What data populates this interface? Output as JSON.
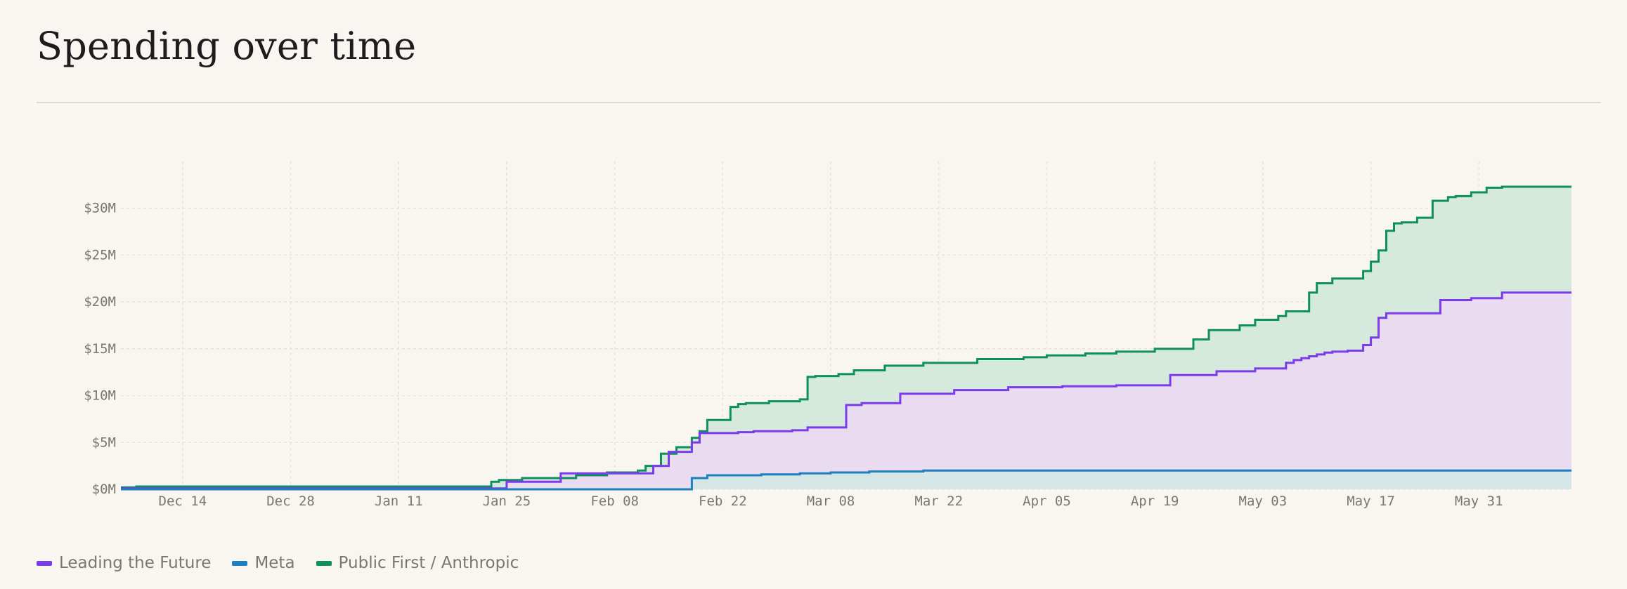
{
  "page": {
    "title": "Spending over time"
  },
  "chart_data": {
    "type": "area",
    "title": "Spending over time",
    "xlabel": "",
    "ylabel": "",
    "ylim": [
      0,
      35
    ],
    "xlim": [
      "2025-12-06",
      "2026-06-12"
    ],
    "grid": true,
    "stacked": true,
    "x_ticks": [
      "Dec 14",
      "Dec 28",
      "Jan 11",
      "Jan 25",
      "Feb 08",
      "Feb 22",
      "Mar 08",
      "Mar 22",
      "Apr 05",
      "Apr 19",
      "May 03",
      "May 17",
      "May 31"
    ],
    "x_tick_dates": [
      "2025-12-14",
      "2025-12-28",
      "2026-01-11",
      "2026-01-25",
      "2026-02-08",
      "2026-02-22",
      "2026-03-08",
      "2026-03-22",
      "2026-04-05",
      "2026-04-19",
      "2026-05-03",
      "2026-05-17",
      "2026-05-31"
    ],
    "y_ticks": [
      0,
      5,
      10,
      15,
      20,
      25,
      30
    ],
    "y_tick_labels": [
      "$0M",
      "$5M",
      "$10M",
      "$15M",
      "$20M",
      "$25M",
      "$30M"
    ],
    "legend_position": "bottom-left",
    "series": [
      {
        "name": "Leading the Future",
        "color": "#7c3aed",
        "fill": "#e9dcf1",
        "dates": [
          "2025-12-06",
          "2026-01-25",
          "2026-02-01",
          "2026-02-13",
          "2026-02-15",
          "2026-02-18",
          "2026-02-19",
          "2026-02-24",
          "2026-02-26",
          "2026-03-03",
          "2026-03-05",
          "2026-03-10",
          "2026-03-12",
          "2026-03-17",
          "2026-03-24",
          "2026-03-31",
          "2026-04-07",
          "2026-04-14",
          "2026-04-21",
          "2026-04-27",
          "2026-05-02",
          "2026-05-06",
          "2026-05-07",
          "2026-05-08",
          "2026-05-09",
          "2026-05-10",
          "2026-05-11",
          "2026-05-12",
          "2026-05-14",
          "2026-05-16",
          "2026-05-17",
          "2026-05-18",
          "2026-05-19",
          "2026-05-26",
          "2026-05-30",
          "2026-06-03",
          "2026-06-12"
        ],
        "values": [
          0.1,
          0.8,
          1.7,
          2.5,
          4.0,
          5.0,
          6.0,
          6.1,
          6.2,
          6.3,
          6.6,
          9.0,
          9.2,
          10.2,
          10.6,
          10.9,
          11.0,
          11.1,
          12.2,
          12.6,
          12.9,
          13.5,
          13.8,
          14.0,
          14.2,
          14.4,
          14.6,
          14.7,
          14.8,
          15.4,
          16.2,
          18.3,
          18.8,
          20.2,
          20.4,
          21.0,
          21.0
        ]
      },
      {
        "name": "Meta",
        "color": "#1d7fbd",
        "fill": "#d5e6e6",
        "dates": [
          "2025-12-06",
          "2026-02-18",
          "2026-02-20",
          "2026-02-27",
          "2026-03-04",
          "2026-03-08",
          "2026-03-13",
          "2026-03-20",
          "2026-06-12"
        ],
        "values": [
          0.0,
          1.2,
          1.5,
          1.6,
          1.7,
          1.8,
          1.9,
          2.0,
          2.0
        ]
      },
      {
        "name": "Public First / Anthropic",
        "color": "#0e8f5e",
        "fill": "#d6e9dd",
        "dates": [
          "2025-12-06",
          "2025-12-08",
          "2026-01-23",
          "2026-01-24",
          "2026-01-27",
          "2026-02-03",
          "2026-02-07",
          "2026-02-11",
          "2026-02-12",
          "2026-02-14",
          "2026-02-16",
          "2026-02-18",
          "2026-02-19",
          "2026-02-20",
          "2026-02-23",
          "2026-02-24",
          "2026-02-25",
          "2026-02-28",
          "2026-03-04",
          "2026-03-05",
          "2026-03-06",
          "2026-03-09",
          "2026-03-11",
          "2026-03-15",
          "2026-03-20",
          "2026-03-27",
          "2026-04-02",
          "2026-04-05",
          "2026-04-10",
          "2026-04-14",
          "2026-04-19",
          "2026-04-24",
          "2026-04-26",
          "2026-04-30",
          "2026-05-02",
          "2026-05-05",
          "2026-05-06",
          "2026-05-09",
          "2026-05-10",
          "2026-05-12",
          "2026-05-16",
          "2026-05-17",
          "2026-05-18",
          "2026-05-19",
          "2026-05-20",
          "2026-05-21",
          "2026-05-23",
          "2026-05-25",
          "2026-05-27",
          "2026-05-28",
          "2026-05-30",
          "2026-06-01",
          "2026-06-03",
          "2026-06-05",
          "2026-06-12"
        ],
        "values": [
          0.2,
          0.3,
          0.8,
          1.0,
          1.2,
          1.5,
          1.8,
          2.0,
          2.5,
          3.8,
          4.5,
          5.5,
          6.2,
          7.4,
          8.8,
          9.1,
          9.2,
          9.4,
          9.6,
          12.0,
          12.1,
          12.3,
          12.7,
          13.2,
          13.5,
          13.9,
          14.1,
          14.3,
          14.5,
          14.7,
          15.0,
          16.0,
          17.0,
          17.5,
          18.1,
          18.5,
          19.0,
          21.0,
          22.0,
          22.5,
          23.3,
          24.3,
          25.5,
          27.6,
          28.4,
          28.5,
          29.0,
          30.8,
          31.2,
          31.3,
          31.7,
          32.2,
          32.3,
          32.3,
          32.3
        ]
      }
    ]
  }
}
